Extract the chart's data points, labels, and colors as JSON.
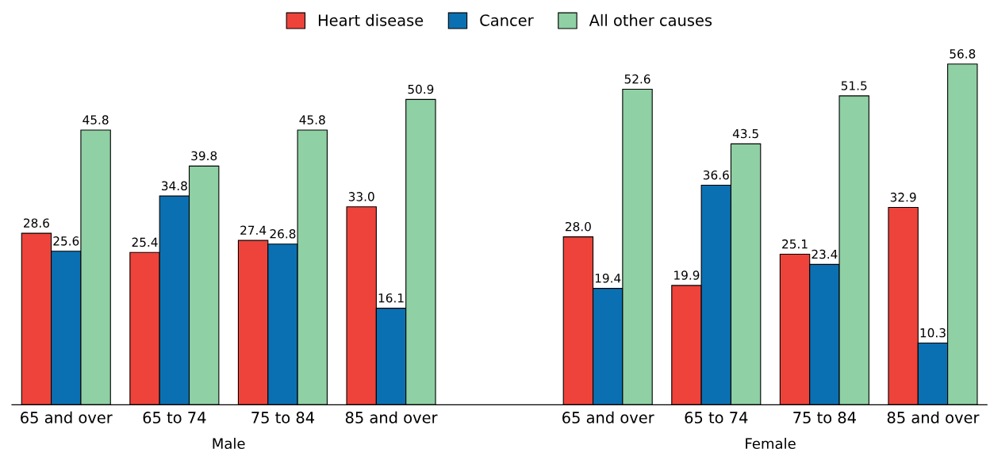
{
  "chart_data": {
    "type": "bar",
    "categories": [
      "65 and over",
      "65 to 74",
      "75 to 84",
      "85 and over",
      null,
      "65 and over",
      "65 to 74",
      "75 to 84",
      "85 and over"
    ],
    "series": [
      {
        "name": "Heart disease",
        "color": "#ee433a",
        "values": [
          28.6,
          25.4,
          27.4,
          33.0,
          null,
          28.0,
          19.9,
          25.1,
          32.9
        ],
        "value_labels": [
          "28.6",
          "25.4",
          "27.4",
          "33.0",
          null,
          "28.0",
          "19.9",
          "25.1",
          "32.9"
        ]
      },
      {
        "name": "Cancer",
        "color": "#0b70b2",
        "values": [
          25.6,
          34.8,
          26.8,
          16.1,
          null,
          19.4,
          36.6,
          23.4,
          10.3
        ],
        "value_labels": [
          "25.6",
          "34.8",
          "26.8",
          "16.1",
          null,
          "19.4",
          "36.6",
          "23.4",
          "10.3"
        ]
      },
      {
        "name": "All other causes",
        "color": "#8fd0a4",
        "values": [
          45.8,
          39.8,
          45.8,
          50.9,
          null,
          52.6,
          43.5,
          51.5,
          56.8
        ],
        "value_labels": [
          "45.8",
          "39.8",
          "45.8",
          "50.9",
          null,
          "52.6",
          "43.5",
          "51.5",
          "56.8"
        ]
      }
    ],
    "legend": "top",
    "annotations": [
      "Male",
      "Female"
    ]
  }
}
